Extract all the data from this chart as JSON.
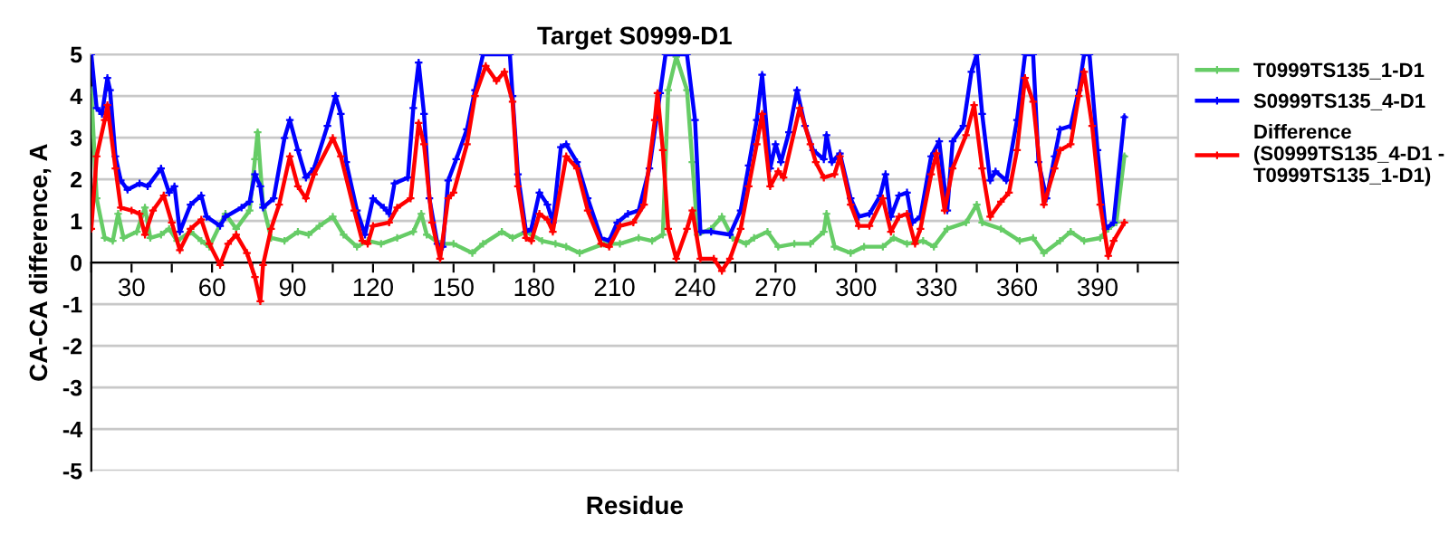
{
  "chart_data": {
    "type": "line",
    "title": "Target S0999-D1",
    "xlabel": "Residue",
    "ylabel": "CA-CA difference, A",
    "xlim": [
      15,
      420
    ],
    "ylim": [
      -5,
      5
    ],
    "xticks": [
      {
        "value": 15,
        "label": null
      },
      30,
      {
        "value": 45,
        "label": null
      },
      60,
      {
        "value": 75,
        "label": null
      },
      90,
      {
        "value": 105,
        "label": null
      },
      120,
      {
        "value": 135,
        "label": null
      },
      150,
      {
        "value": 165,
        "label": null
      },
      180,
      {
        "value": 195,
        "label": null
      },
      210,
      {
        "value": 225,
        "label": null
      },
      240,
      {
        "value": 255,
        "label": null
      },
      270,
      {
        "value": 285,
        "label": null
      },
      300,
      {
        "value": 315,
        "label": null
      },
      330,
      {
        "value": 345,
        "label": null
      },
      360,
      {
        "value": 375,
        "label": null
      },
      390,
      {
        "value": 405,
        "label": null
      }
    ],
    "yticks": [
      -5,
      -4,
      -3,
      -2,
      -1,
      0,
      1,
      2,
      3,
      4,
      5
    ],
    "grid": "y",
    "legend": "right",
    "marker": "cross",
    "line_style": "solid",
    "series": [
      {
        "name": "T0999TS135_1-D1",
        "color": "#66cc66",
        "x": [
          15,
          17,
          20,
          23,
          25,
          27,
          32,
          35,
          37,
          41,
          44,
          47,
          52,
          56,
          59,
          65,
          69,
          74,
          76,
          77,
          79,
          82,
          87,
          92,
          96,
          100,
          105,
          109,
          114,
          118,
          123,
          129,
          135,
          138,
          140,
          145,
          150,
          157,
          161,
          168,
          172,
          177,
          183,
          188,
          192,
          197,
          206,
          212,
          219,
          224,
          228,
          230,
          233,
          237,
          239,
          241,
          246,
          250,
          254,
          259,
          262,
          267,
          271,
          277,
          283,
          288,
          289,
          292,
          298,
          303,
          310,
          314,
          319,
          325,
          329,
          334,
          341,
          345,
          347,
          354,
          361,
          366,
          370,
          376,
          380,
          385,
          391,
          394,
          397,
          400
        ],
        "values": [
          4.14,
          1.54,
          0.59,
          0.52,
          1.17,
          0.59,
          0.74,
          1.32,
          0.59,
          0.67,
          0.81,
          0.52,
          0.74,
          0.52,
          0.38,
          1.17,
          0.81,
          1.25,
          2.48,
          3.13,
          1.39,
          0.59,
          0.52,
          0.74,
          0.67,
          0.88,
          1.1,
          0.67,
          0.38,
          0.52,
          0.45,
          0.59,
          0.74,
          1.17,
          0.67,
          0.45,
          0.45,
          0.23,
          0.45,
          0.74,
          0.59,
          0.74,
          0.52,
          0.45,
          0.38,
          0.23,
          0.45,
          0.45,
          0.59,
          0.52,
          0.67,
          4.14,
          4.94,
          4.14,
          2.41,
          0.67,
          0.81,
          1.1,
          0.59,
          0.45,
          0.59,
          0.74,
          0.38,
          0.45,
          0.45,
          0.74,
          1.17,
          0.38,
          0.23,
          0.38,
          0.38,
          0.59,
          0.45,
          0.52,
          0.38,
          0.81,
          0.96,
          1.39,
          0.96,
          0.81,
          0.52,
          0.59,
          0.23,
          0.52,
          0.74,
          0.52,
          0.59,
          0.81,
          0.96,
          2.55
        ]
      },
      {
        "name": "S0999TS135_4-D1",
        "color": "#0000ff",
        "x": [
          15,
          17,
          19,
          21,
          22,
          24,
          26,
          28.5,
          33,
          36,
          41,
          44,
          46,
          48,
          52,
          56,
          58,
          63,
          65,
          71,
          74,
          76,
          78,
          79,
          83,
          87,
          89,
          92,
          95,
          98,
          103,
          106,
          108,
          110,
          114,
          117,
          120,
          124,
          126,
          128,
          133,
          135,
          137,
          139,
          141,
          144,
          146,
          148,
          151,
          155,
          158,
          161,
          171,
          172,
          174,
          177,
          179,
          182,
          185,
          187,
          190,
          192,
          196,
          200,
          205,
          208,
          211,
          215,
          219,
          223,
          227,
          229,
          237,
          240,
          242,
          246,
          253,
          257,
          260,
          263,
          265,
          268,
          270,
          272,
          275,
          278,
          281,
          284,
          288,
          289,
          291,
          294,
          298,
          301,
          305,
          309,
          311,
          313,
          316,
          319,
          321,
          324,
          328,
          331,
          334,
          336,
          340,
          343,
          345,
          347,
          350,
          352,
          356,
          360,
          363,
          366,
          368,
          371,
          374,
          376,
          380,
          383,
          385,
          387,
          390,
          393,
          396,
          400
        ],
        "values": [
          5.0,
          3.71,
          3.57,
          4.43,
          4.14,
          2.55,
          1.97,
          1.75,
          1.9,
          1.83,
          2.26,
          1.68,
          1.83,
          0.74,
          1.39,
          1.61,
          1.1,
          0.88,
          1.1,
          1.32,
          1.46,
          2.12,
          1.83,
          1.32,
          1.54,
          2.99,
          3.42,
          2.7,
          2.04,
          2.26,
          3.28,
          4.0,
          3.57,
          2.41,
          1.25,
          0.67,
          1.54,
          1.32,
          1.17,
          1.9,
          2.04,
          3.71,
          4.8,
          3.57,
          1.54,
          0.45,
          0.38,
          1.97,
          2.48,
          3.2,
          4.14,
          5.0,
          5.0,
          4.0,
          2.12,
          0.74,
          0.81,
          1.68,
          1.39,
          0.96,
          2.77,
          2.84,
          2.41,
          1.54,
          0.59,
          0.52,
          0.96,
          1.17,
          1.25,
          2.26,
          4.07,
          5.0,
          5.0,
          3.42,
          0.74,
          0.74,
          0.67,
          1.25,
          2.33,
          3.42,
          4.51,
          2.26,
          2.84,
          2.41,
          3.13,
          4.14,
          3.28,
          2.7,
          2.48,
          3.06,
          2.41,
          2.62,
          1.54,
          1.1,
          1.17,
          1.61,
          2.12,
          1.1,
          1.61,
          1.68,
          0.96,
          1.1,
          2.55,
          2.91,
          1.25,
          2.91,
          3.28,
          4.58,
          5.0,
          3.57,
          1.97,
          2.19,
          1.97,
          3.42,
          5.0,
          5.0,
          2.41,
          1.54,
          2.55,
          3.2,
          3.28,
          4.14,
          5.0,
          5.0,
          2.7,
          0.81,
          0.96,
          3.49
        ]
      },
      {
        "name": "Difference\n(S0999TS135_4-D1 -\nT0999TS135_1-D1)",
        "color": "#ff0000",
        "x": [
          15,
          17,
          20,
          21,
          24,
          26,
          30,
          33,
          35,
          38,
          42,
          45,
          48,
          52,
          56,
          59,
          63,
          66,
          69,
          73,
          76,
          78,
          79,
          82,
          85,
          89,
          92,
          95,
          98,
          105,
          108,
          113,
          116,
          118,
          120,
          126,
          129,
          134,
          137,
          139,
          142,
          145,
          148,
          150,
          155,
          158,
          162,
          166,
          169,
          172,
          174,
          177,
          179,
          182,
          185,
          187,
          192,
          196,
          200,
          205,
          208,
          212,
          217,
          221,
          225,
          226,
          228,
          230,
          233,
          237,
          239,
          242,
          247,
          250,
          253,
          257,
          260,
          263,
          265,
          268,
          271,
          273,
          279,
          283,
          285,
          288,
          292,
          294,
          298,
          301,
          305,
          310,
          313,
          316,
          319,
          322,
          324,
          328,
          330,
          333,
          336,
          341,
          344,
          347,
          350,
          354,
          357,
          360,
          363,
          366,
          370,
          374,
          376,
          380,
          383,
          385,
          388,
          391,
          394,
          396,
          400
        ],
        "values": [
          0.81,
          2.55,
          3.42,
          3.78,
          2.26,
          1.32,
          1.25,
          1.17,
          0.67,
          1.25,
          1.61,
          0.96,
          0.3,
          0.81,
          1.03,
          0.45,
          -0.06,
          0.45,
          0.67,
          0.23,
          -0.35,
          -0.93,
          -0.06,
          0.81,
          1.39,
          2.55,
          1.83,
          1.54,
          2.12,
          2.99,
          2.55,
          1.25,
          0.52,
          0.45,
          0.88,
          0.96,
          1.32,
          1.54,
          3.35,
          2.84,
          0.96,
          0.09,
          1.54,
          1.68,
          2.84,
          4.0,
          4.72,
          4.36,
          4.58,
          3.86,
          1.83,
          0.59,
          0.52,
          1.17,
          1.03,
          0.74,
          2.55,
          2.26,
          1.25,
          0.45,
          0.38,
          0.88,
          0.96,
          1.39,
          3.42,
          4.07,
          2.7,
          0.81,
          0.09,
          0.81,
          1.25,
          0.09,
          0.09,
          -0.2,
          0.09,
          0.81,
          1.83,
          2.84,
          3.57,
          1.83,
          2.19,
          2.04,
          3.71,
          2.84,
          2.41,
          2.04,
          2.12,
          2.55,
          1.39,
          0.88,
          0.88,
          1.54,
          0.74,
          1.1,
          1.17,
          0.45,
          0.81,
          2.12,
          2.62,
          1.25,
          2.26,
          3.06,
          3.78,
          2.26,
          1.1,
          1.46,
          1.68,
          2.7,
          4.43,
          3.86,
          1.39,
          2.26,
          2.7,
          2.84,
          4.0,
          4.58,
          3.28,
          1.39,
          0.16,
          0.52,
          0.96
        ]
      }
    ]
  }
}
